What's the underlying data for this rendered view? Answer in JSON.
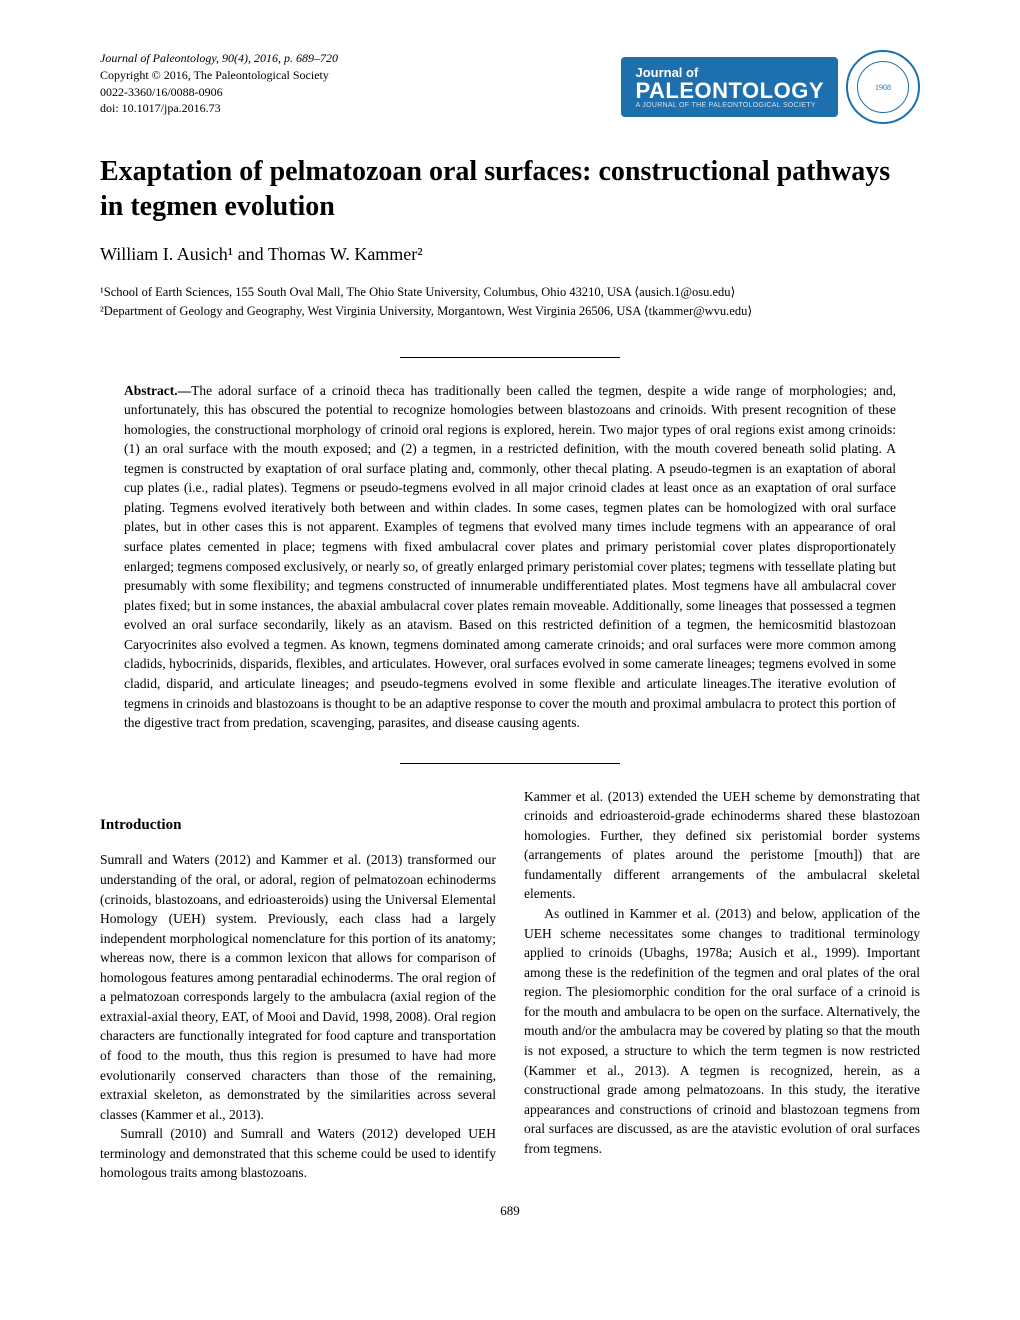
{
  "meta": {
    "journal_line": "Journal of Paleontology, 90(4), 2016, p. 689–720",
    "copyright": "Copyright © 2016, The Paleontological Society",
    "issn": "0022-3360/16/0088-0906",
    "doi": "doi: 10.1017/jpa.2016.73"
  },
  "logo": {
    "top": "Journal of",
    "main": "PALEONTOLOGY",
    "sub": "A JOURNAL OF THE PALEONTOLOGICAL SOCIETY",
    "seal_year": "1908"
  },
  "title": "Exaptation of pelmatozoan oral surfaces: constructional pathways in tegmen evolution",
  "authors": "William I. Ausich¹ and Thomas W. Kammer²",
  "affiliations": {
    "a1": "¹School of Earth Sciences, 155 South Oval Mall, The Ohio State University, Columbus, Ohio 43210, USA ⟨ausich.1@osu.edu⟩",
    "a2": "²Department of Geology and Geography, West Virginia University, Morgantown, West Virginia 26506, USA ⟨tkammer@wvu.edu⟩"
  },
  "abstract": {
    "label": "Abstract.—",
    "text": "The adoral surface of a crinoid theca has traditionally been called the tegmen, despite a wide range of morphologies; and, unfortunately, this has obscured the potential to recognize homologies between blastozoans and crinoids. With present recognition of these homologies, the constructional morphology of crinoid oral regions is explored, herein. Two major types of oral regions exist among crinoids: (1) an oral surface with the mouth exposed; and (2) a tegmen, in a restricted definition, with the mouth covered beneath solid plating. A tegmen is constructed by exaptation of oral surface plating and, commonly, other thecal plating. A pseudo-tegmen is an exaptation of aboral cup plates (i.e., radial plates). Tegmens or pseudo-tegmens evolved in all major crinoid clades at least once as an exaptation of oral surface plating. Tegmens evolved iteratively both between and within clades. In some cases, tegmen plates can be homologized with oral surface plates, but in other cases this is not apparent. Examples of tegmens that evolved many times include tegmens with an appearance of oral surface plates cemented in place; tegmens with fixed ambulacral cover plates and primary peristomial cover plates disproportionately enlarged; tegmens composed exclusively, or nearly so, of greatly enlarged primary peristomial cover plates; tegmens with tessellate plating but presumably with some flexibility; and tegmens constructed of innumerable undifferentiated plates. Most tegmens have all ambulacral cover plates fixed; but in some instances, the abaxial ambulacral cover plates remain moveable. Additionally, some lineages that possessed a tegmen evolved an oral surface secondarily, likely as an atavism. Based on this restricted definition of a tegmen, the hemicosmitid blastozoan Caryocrinites also evolved a tegmen. As known, tegmens dominated among camerate crinoids; and oral surfaces were more common among cladids, hybocrinids, disparids, flexibles, and articulates. However, oral surfaces evolved in some camerate lineages; tegmens evolved in some cladid, disparid, and articulate lineages; and pseudo-tegmens evolved in some flexible and articulate lineages.The iterative evolution of tegmens in crinoids and blastozoans is thought to be an adaptive response to cover the mouth and proximal ambulacra to protect this portion of the digestive tract from predation, scavenging, parasites, and disease causing agents."
  },
  "intro_title": "Introduction",
  "col1": {
    "p1": "Sumrall and Waters (2012) and Kammer et al. (2013) transformed our understanding of the oral, or adoral, region of pelmatozoan echinoderms (crinoids, blastozoans, and edrioasteroids) using the Universal Elemental Homology (UEH) system. Previously, each class had a largely independent morphological nomenclature for this portion of its anatomy; whereas now, there is a common lexicon that allows for comparison of homologous features among pentaradial echinoderms. The oral region of a pelmatozoan corresponds largely to the ambulacra (axial region of the extraxial-axial theory, EAT, of Mooi and David, 1998, 2008). Oral region characters are functionally integrated for food capture and transportation of food to the mouth, thus this region is presumed to have had more evolutionarily conserved characters than those of the remaining, extraxial skeleton, as demonstrated by the similarities across several classes (Kammer et al., 2013).",
    "p2": "Sumrall (2010) and Sumrall and Waters (2012) developed UEH terminology and demonstrated that this scheme could be used to identify homologous traits among blastozoans."
  },
  "col2": {
    "p1": "Kammer et al. (2013) extended the UEH scheme by demonstrating that crinoids and edrioasteroid-grade echinoderms shared these blastozoan homologies. Further, they defined six peristomial border systems (arrangements of plates around the peristome [mouth]) that are fundamentally different arrangements of the ambulacral skeletal elements.",
    "p2": "As outlined in Kammer et al. (2013) and below, application of the UEH scheme necessitates some changes to traditional terminology applied to crinoids (Ubaghs, 1978a; Ausich et al., 1999). Important among these is the redefinition of the tegmen and oral plates of the oral region. The plesiomorphic condition for the oral surface of a crinoid is for the mouth and ambulacra to be open on the surface. Alternatively, the mouth and/or the ambulacra may be covered by plating so that the mouth is not exposed, a structure to which the term tegmen is now restricted (Kammer et al., 2013). A tegmen is recognized, herein, as a constructional grade among pelmatozoans. In this study, the iterative appearances and constructions of crinoid and blastozoan tegmens from oral surfaces are discussed, as are the atavistic evolution of oral surfaces from tegmens."
  },
  "pageno": "689"
}
